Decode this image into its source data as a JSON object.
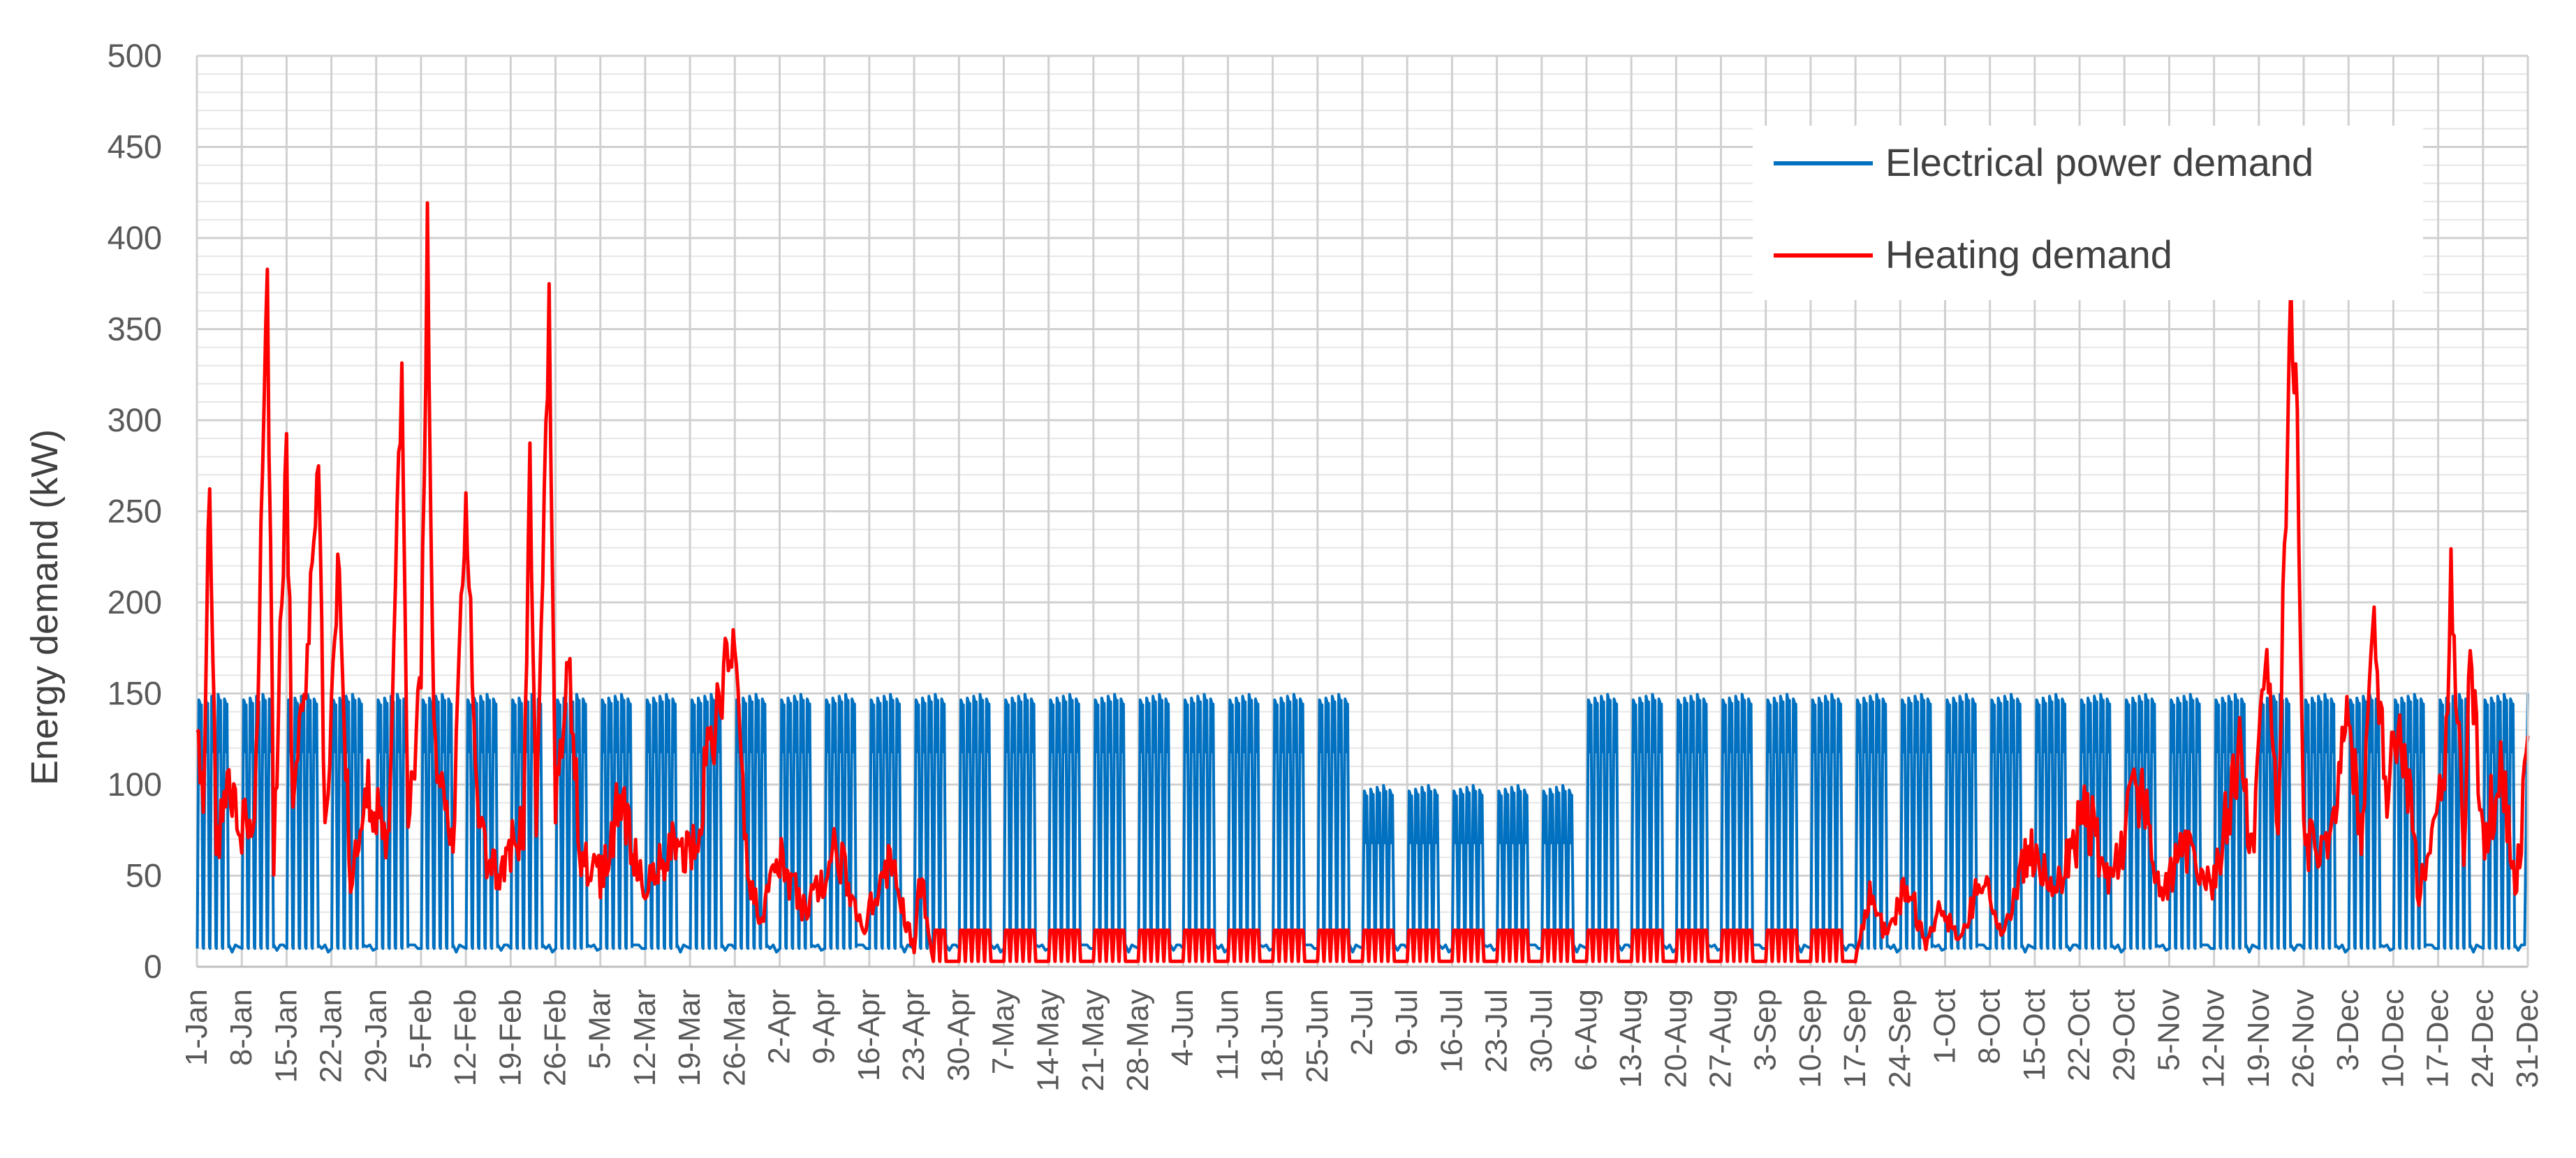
{
  "chart_data": {
    "type": "line",
    "ylabel": "Energy demand (kW)",
    "xlabel": "",
    "ylim": [
      0,
      500
    ],
    "y_ticks": [
      "0",
      "50",
      "100",
      "150",
      "200",
      "250",
      "300",
      "350",
      "400",
      "450",
      "500"
    ],
    "x_ticks": [
      "1-Jan",
      "8-Jan",
      "15-Jan",
      "22-Jan",
      "29-Jan",
      "5-Feb",
      "12-Feb",
      "19-Feb",
      "26-Feb",
      "5-Mar",
      "12-Mar",
      "19-Mar",
      "26-Mar",
      "2-Apr",
      "9-Apr",
      "16-Apr",
      "23-Apr",
      "30-Apr",
      "7-May",
      "14-May",
      "21-May",
      "28-May",
      "4-Jun",
      "11-Jun",
      "18-Jun",
      "25-Jun",
      "2-Jul",
      "9-Jul",
      "16-Jul",
      "23-Jul",
      "30-Jul",
      "6-Aug",
      "13-Aug",
      "20-Aug",
      "27-Aug",
      "3-Sep",
      "10-Sep",
      "17-Sep",
      "24-Sep",
      "1-Oct",
      "8-Oct",
      "15-Oct",
      "22-Oct",
      "29-Oct",
      "5-Nov",
      "12-Nov",
      "19-Nov",
      "26-Nov",
      "3-Dec",
      "10-Dec",
      "17-Dec",
      "24-Dec",
      "31-Dec"
    ],
    "x_range_days": [
      0,
      364
    ],
    "grid": true,
    "legend_position": "top-right",
    "series": [
      {
        "name": "Electrical power demand",
        "color": "#0070C0",
        "pattern": "daily oscillation between base load and weekday peak; weekends stay at base load",
        "base_kw": 8,
        "peak_kw_by_period": [
          {
            "from": "1-Jan",
            "to": "30-Jun",
            "peak": 148
          },
          {
            "from": "1-Jul",
            "to": "3-Aug",
            "peak": 98
          },
          {
            "from": "4-Aug",
            "to": "31-Dec",
            "peak": 148
          }
        ]
      },
      {
        "name": "Heating demand",
        "color": "#FF0000",
        "pattern": "seasonal heating load; constant ~20 kW band on working days from late April to mid September",
        "points": [
          {
            "day": 0,
            "value": 150
          },
          {
            "day": 1,
            "value": 70
          },
          {
            "day": 2,
            "value": 280
          },
          {
            "day": 3,
            "value": 60
          },
          {
            "day": 5,
            "value": 110
          },
          {
            "day": 7,
            "value": 75
          },
          {
            "day": 9,
            "value": 80
          },
          {
            "day": 11,
            "value": 370
          },
          {
            "day": 12,
            "value": 60
          },
          {
            "day": 14,
            "value": 280
          },
          {
            "day": 15,
            "value": 90
          },
          {
            "day": 17,
            "value": 150
          },
          {
            "day": 19,
            "value": 282
          },
          {
            "day": 20,
            "value": 70
          },
          {
            "day": 22,
            "value": 220
          },
          {
            "day": 24,
            "value": 50
          },
          {
            "day": 27,
            "value": 100
          },
          {
            "day": 30,
            "value": 60
          },
          {
            "day": 32,
            "value": 340
          },
          {
            "day": 33,
            "value": 80
          },
          {
            "day": 35,
            "value": 150
          },
          {
            "day": 36,
            "value": 400
          },
          {
            "day": 37,
            "value": 120
          },
          {
            "day": 40,
            "value": 60
          },
          {
            "day": 42,
            "value": 262
          },
          {
            "day": 44,
            "value": 70
          },
          {
            "day": 47,
            "value": 50
          },
          {
            "day": 51,
            "value": 80
          },
          {
            "day": 52,
            "value": 275
          },
          {
            "day": 53,
            "value": 70
          },
          {
            "day": 55,
            "value": 360
          },
          {
            "day": 56,
            "value": 80
          },
          {
            "day": 58,
            "value": 172
          },
          {
            "day": 60,
            "value": 60
          },
          {
            "day": 63,
            "value": 50
          },
          {
            "day": 66,
            "value": 90
          },
          {
            "day": 70,
            "value": 40
          },
          {
            "day": 74,
            "value": 70
          },
          {
            "day": 77,
            "value": 60
          },
          {
            "day": 84,
            "value": 190
          },
          {
            "day": 86,
            "value": 50
          },
          {
            "day": 88,
            "value": 25
          },
          {
            "day": 91,
            "value": 60
          },
          {
            "day": 95,
            "value": 30
          },
          {
            "day": 100,
            "value": 65
          },
          {
            "day": 104,
            "value": 20
          },
          {
            "day": 108,
            "value": 60
          },
          {
            "day": 112,
            "value": 10
          },
          {
            "day": 113,
            "value": 50
          },
          {
            "day": 115,
            "value": 3
          },
          {
            "day": 196,
            "value": 3
          },
          {
            "day": 259,
            "value": 3
          },
          {
            "day": 261,
            "value": 40
          },
          {
            "day": 264,
            "value": 15
          },
          {
            "day": 267,
            "value": 50
          },
          {
            "day": 270,
            "value": 10
          },
          {
            "day": 272,
            "value": 35
          },
          {
            "day": 275,
            "value": 15
          },
          {
            "day": 279,
            "value": 50
          },
          {
            "day": 282,
            "value": 20
          },
          {
            "day": 286,
            "value": 65
          },
          {
            "day": 290,
            "value": 40
          },
          {
            "day": 295,
            "value": 85
          },
          {
            "day": 299,
            "value": 45
          },
          {
            "day": 303,
            "value": 100
          },
          {
            "day": 307,
            "value": 40
          },
          {
            "day": 311,
            "value": 70
          },
          {
            "day": 315,
            "value": 45
          },
          {
            "day": 319,
            "value": 120
          },
          {
            "day": 321,
            "value": 60
          },
          {
            "day": 323,
            "value": 170
          },
          {
            "day": 325,
            "value": 80
          },
          {
            "day": 327,
            "value": 367
          },
          {
            "day": 328,
            "value": 300
          },
          {
            "day": 329,
            "value": 70
          },
          {
            "day": 333,
            "value": 60
          },
          {
            "day": 336,
            "value": 140
          },
          {
            "day": 338,
            "value": 60
          },
          {
            "day": 340,
            "value": 183
          },
          {
            "day": 342,
            "value": 90
          },
          {
            "day": 344,
            "value": 140
          },
          {
            "day": 347,
            "value": 40
          },
          {
            "day": 351,
            "value": 100
          },
          {
            "day": 352,
            "value": 218
          },
          {
            "day": 354,
            "value": 60
          },
          {
            "day": 355,
            "value": 176
          },
          {
            "day": 357,
            "value": 70
          },
          {
            "day": 360,
            "value": 110
          },
          {
            "day": 362,
            "value": 40
          },
          {
            "day": 364,
            "value": 115
          }
        ]
      }
    ]
  }
}
